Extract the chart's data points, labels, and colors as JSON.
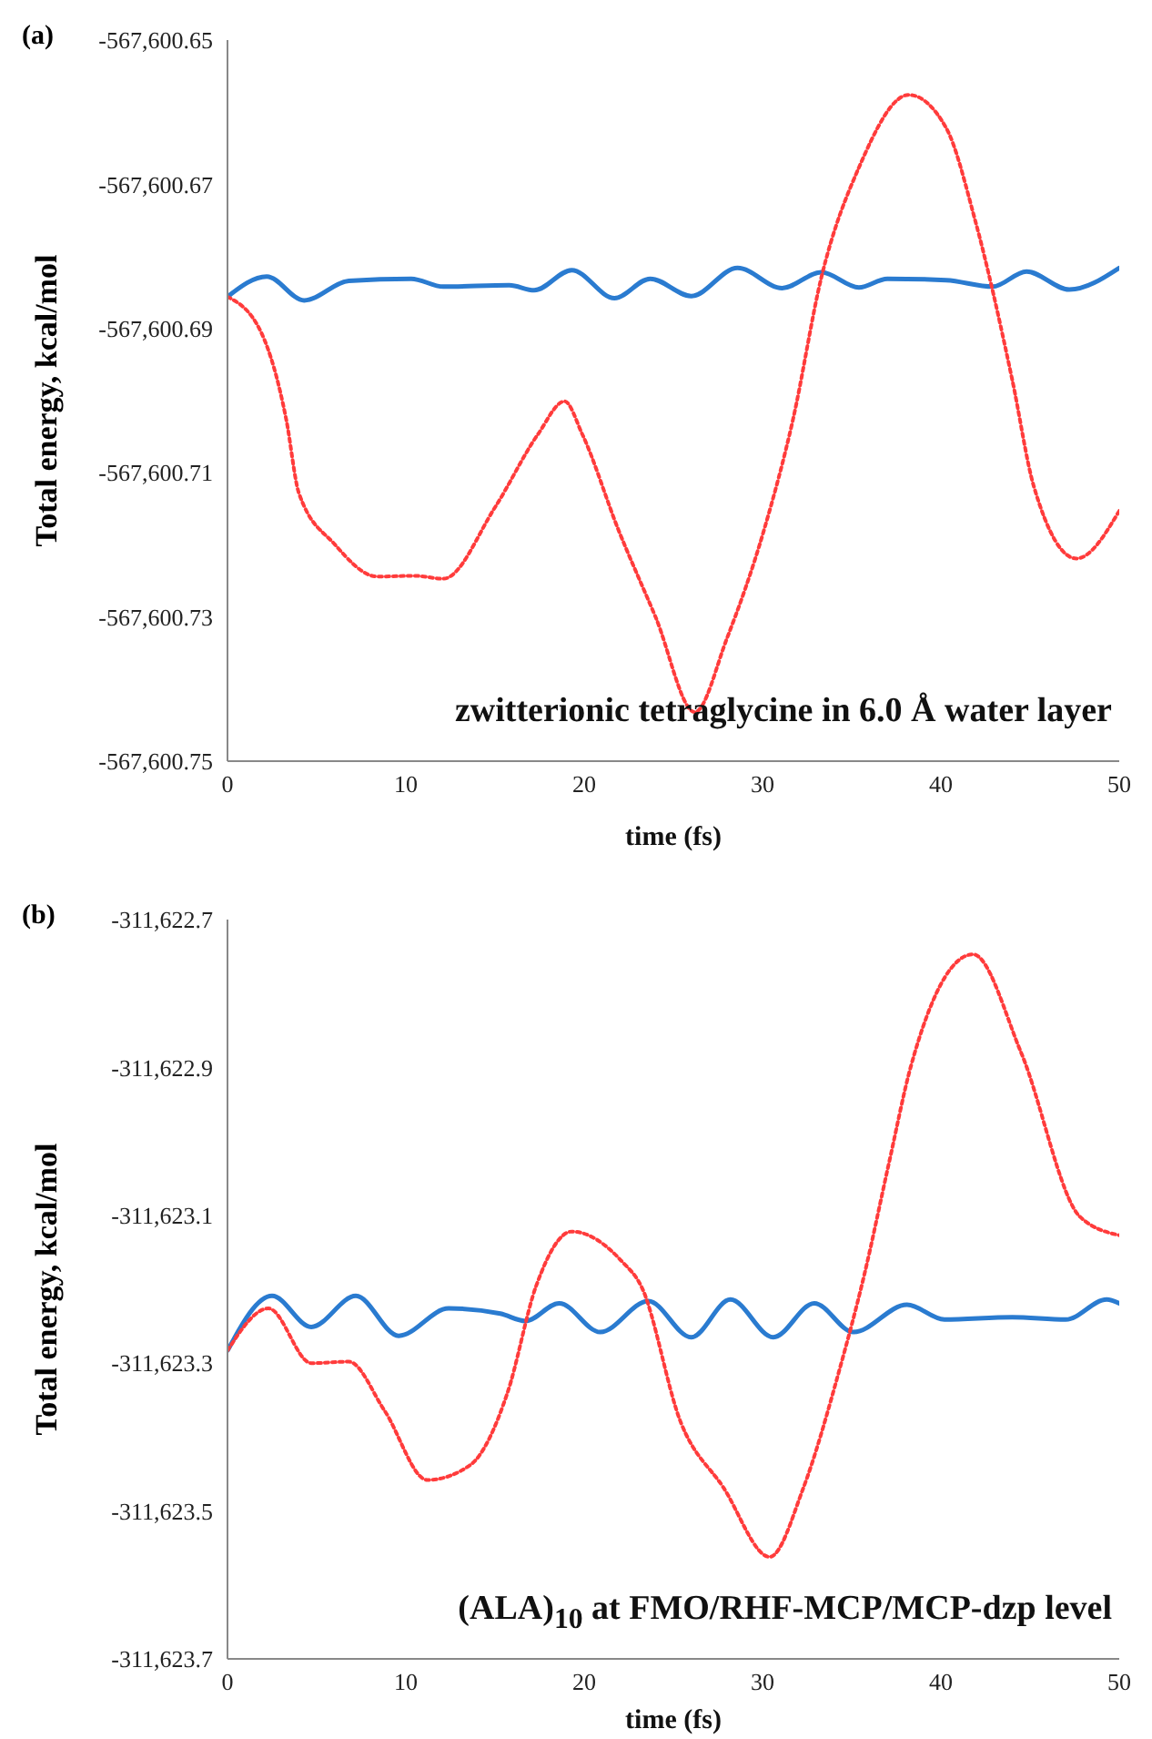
{
  "chart_data": [
    {
      "type": "line",
      "title": "(a)",
      "xlabel": "time (fs)",
      "ylabel": "Total energy, kcal/mol",
      "annotations": [
        "zwitterionic tetraglycine in 6.0 Å water layer"
      ],
      "xlim": [
        0,
        50
      ],
      "xticks": [
        0,
        10,
        20,
        30,
        40,
        50
      ],
      "ylim": [
        -567600.75,
        -567600.65
      ],
      "marker": "none",
      "yticks": [
        {
          "value": -567600.75,
          "label": "-567,600.75"
        },
        {
          "value": -567600.73,
          "label": "-567,600.73"
        },
        {
          "value": -567600.71,
          "label": "-567,600.71"
        },
        {
          "value": -567600.69,
          "label": "-567,600.69"
        },
        {
          "value": -567600.67,
          "label": "-567,600.67"
        },
        {
          "value": -567600.65,
          "label": "-567,600.65"
        }
      ],
      "series": [
        {
          "color": "#2a7bd0",
          "line_style": "solid",
          "x": [
            0,
            2.2,
            4.3,
            6.8,
            10.3,
            12.1,
            15.8,
            17.2,
            19.3,
            21.7,
            23.7,
            26,
            28.6,
            31.1,
            33.3,
            35.4,
            37,
            40.3,
            42.9,
            44.8,
            47.2,
            50
          ],
          "values": [
            -567600.6856,
            -567600.6828,
            -567600.6861,
            -567600.6834,
            -567600.6831,
            -567600.6842,
            -567600.684,
            -567600.6847,
            -567600.6819,
            -567600.6858,
            -567600.6831,
            -567600.6855,
            -567600.6816,
            -567600.6844,
            -567600.6822,
            -567600.6843,
            -567600.6831,
            -567600.6833,
            -567600.6842,
            -567600.6821,
            -567600.6846,
            -567600.6816
          ]
        },
        {
          "color": "#ff3b3b",
          "line_style": "dotted",
          "x": [
            0,
            1.9,
            3.3,
            4.0,
            6.0,
            8.4,
            10.5,
            12.1,
            15,
            17.4,
            18.9,
            19.9,
            21.9,
            24,
            26.2,
            28,
            30.1,
            31.7,
            33.3,
            35.4,
            38.2,
            40.3,
            41.9,
            44,
            45.2,
            47.6,
            50
          ],
          "values": [
            -567600.6856,
            -567600.6906,
            -567600.7027,
            -567600.7128,
            -567600.7199,
            -567600.7244,
            -567600.7243,
            -567600.7247,
            -567600.7148,
            -567600.7047,
            -567600.7001,
            -567600.7047,
            -567600.7178,
            -567600.73,
            -567600.7432,
            -567600.733,
            -567600.7178,
            -567600.7027,
            -567600.6829,
            -567600.6677,
            -567600.6576,
            -567600.6622,
            -567600.6748,
            -567600.6971,
            -567600.7118,
            -567600.7219,
            -567600.7153
          ]
        }
      ]
    },
    {
      "type": "line",
      "title": "(b)",
      "xlabel": "time (fs)",
      "ylabel": "Total energy, kcal/mol",
      "annotations": [
        "(ALA)$_{10}$ at FMO/RHF-MCP/MCP-dzp level"
      ],
      "xlim": [
        0,
        50
      ],
      "xticks": [
        0,
        10,
        20,
        30,
        40,
        50
      ],
      "ylim": [
        -311623.7,
        -311622.7
      ],
      "yticks": [
        {
          "value": -311623.7,
          "label": "-311,623.7"
        },
        {
          "value": -311623.5,
          "label": "-311,623.5"
        },
        {
          "value": -311623.3,
          "label": "-311,623.3"
        },
        {
          "value": -311623.1,
          "label": "-311,623.1"
        },
        {
          "value": -311622.9,
          "label": "-311,622.9"
        },
        {
          "value": -311622.7,
          "label": "-311,622.7"
        }
      ],
      "marker": "none",
      "series": [
        {
          "color": "#2a7bd0",
          "line_style": "solid",
          "x": [
            0,
            2.5,
            4.7,
            7.2,
            9.6,
            12.4,
            15.3,
            16.7,
            18.6,
            20.9,
            23.6,
            26,
            28.2,
            30.6,
            32.9,
            35.1,
            38.1,
            40.2,
            44,
            47,
            49.3,
            50
          ],
          "values": [
            -311623.283,
            -311623.209,
            -311623.251,
            -311623.209,
            -311623.263,
            -311623.226,
            -311623.233,
            -311623.243,
            -311623.219,
            -311623.258,
            -311623.216,
            -311623.265,
            -311623.214,
            -311623.265,
            -311623.219,
            -311623.258,
            -311623.221,
            -311623.241,
            -311623.238,
            -311623.241,
            -311623.214,
            -311623.219
          ]
        },
        {
          "color": "#ff3b3b",
          "line_style": "dotted",
          "x": [
            0,
            2.3,
            4.7,
            6.8,
            8.8,
            11.2,
            13.6,
            15.7,
            17.3,
            19.3,
            22.1,
            23.2,
            25.4,
            27.8,
            30.4,
            32.3,
            34.3,
            35.7,
            37.1,
            38.3,
            41.8,
            44.5,
            47.8,
            50
          ],
          "values": [
            -311623.283,
            -311623.226,
            -311623.3,
            -311623.298,
            -311623.364,
            -311623.458,
            -311623.438,
            -311623.34,
            -311623.196,
            -311623.122,
            -311623.162,
            -311623.196,
            -311623.379,
            -311623.468,
            -311623.562,
            -311623.468,
            -311623.31,
            -311623.181,
            -311623.028,
            -311622.9,
            -311622.747,
            -311622.88,
            -311623.102,
            -311623.127
          ]
        }
      ]
    }
  ]
}
